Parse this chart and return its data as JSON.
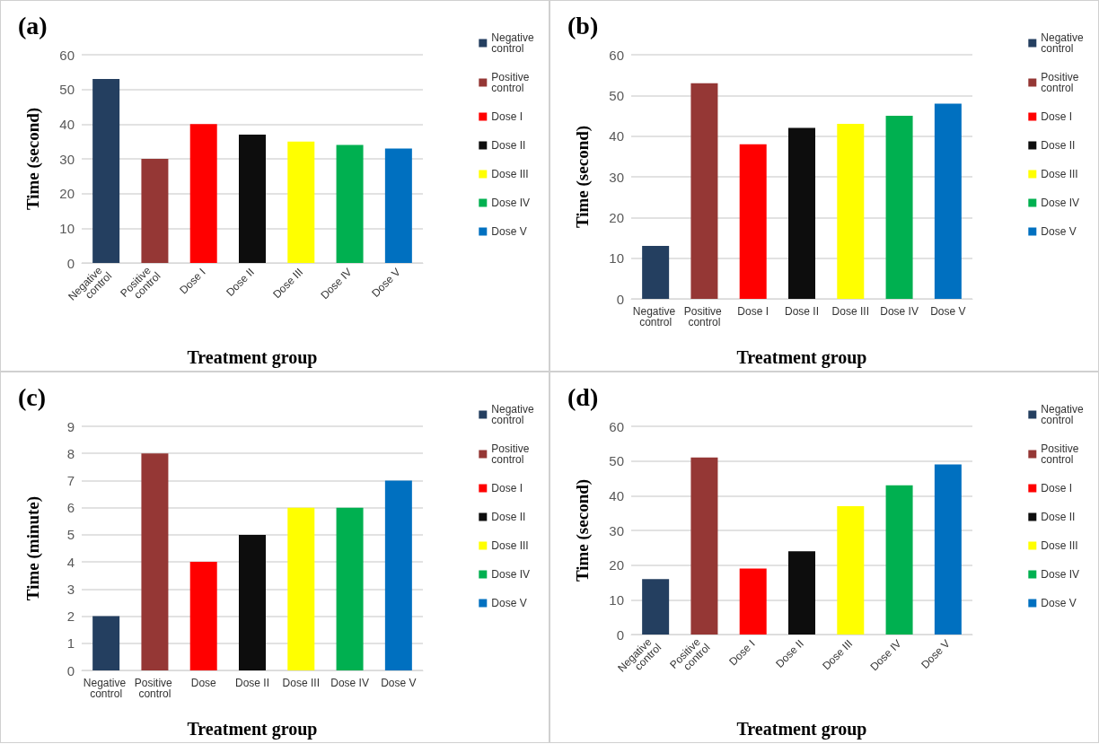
{
  "chart_data": [
    {
      "type": "bar",
      "title": "(a)",
      "xlabel": "Treatment group",
      "ylabel": "Time (second)",
      "categories": [
        "Negative control",
        "Positive control",
        "Dose I",
        "Dose II",
        "Dose III",
        "Dose IV",
        "Dose V"
      ],
      "stacked": true,
      "ylim": [
        0,
        60
      ],
      "yticks": [
        0,
        10,
        20,
        30,
        40,
        50,
        60
      ],
      "grid": "y",
      "legend": "right",
      "series": [
        {
          "name": "Negative control",
          "color": "#243f60",
          "values": [
            53,
            null,
            null,
            null,
            null,
            null,
            null
          ]
        },
        {
          "name": "Positive control",
          "color": "#953735",
          "values": [
            null,
            30,
            null,
            null,
            null,
            null,
            null
          ]
        },
        {
          "name": "Dose I",
          "color": "#ff0000",
          "values": [
            null,
            null,
            40,
            null,
            null,
            null,
            null
          ]
        },
        {
          "name": "Dose II",
          "color": "#0d0d0d",
          "values": [
            null,
            null,
            null,
            37,
            null,
            null,
            null
          ]
        },
        {
          "name": "Dose III",
          "color": "#ffff00",
          "values": [
            null,
            null,
            null,
            null,
            35,
            null,
            null
          ]
        },
        {
          "name": "Dose IV",
          "color": "#00b050",
          "values": [
            null,
            null,
            null,
            null,
            null,
            34,
            null
          ]
        },
        {
          "name": "Dose V",
          "color": "#0070c0",
          "values": [
            null,
            null,
            null,
            null,
            null,
            null,
            33
          ]
        }
      ]
    },
    {
      "type": "bar",
      "title": "(b)",
      "xlabel": "Treatment group",
      "ylabel": "Time (second)",
      "categories": [
        "Negative control",
        "Positive control",
        "Dose I",
        "Dose II",
        "Dose III",
        "Dose IV",
        "Dose V"
      ],
      "stacked": true,
      "ylim": [
        0,
        60
      ],
      "yticks": [
        0,
        10,
        20,
        30,
        40,
        50,
        60
      ],
      "grid": "y",
      "legend": "right",
      "series": [
        {
          "name": "Negative control",
          "color": "#243f60",
          "values": [
            13,
            null,
            null,
            null,
            null,
            null,
            null
          ]
        },
        {
          "name": "Positive control",
          "color": "#953735",
          "values": [
            null,
            53,
            null,
            null,
            null,
            null,
            null
          ]
        },
        {
          "name": "Dose I",
          "color": "#ff0000",
          "values": [
            null,
            null,
            38,
            null,
            null,
            null,
            null
          ]
        },
        {
          "name": "Dose II",
          "color": "#0d0d0d",
          "values": [
            null,
            null,
            null,
            42,
            null,
            null,
            null
          ]
        },
        {
          "name": "Dose III",
          "color": "#ffff00",
          "values": [
            null,
            null,
            null,
            null,
            43,
            null,
            null
          ]
        },
        {
          "name": "Dose IV",
          "color": "#00b050",
          "values": [
            null,
            null,
            null,
            null,
            null,
            45,
            null
          ]
        },
        {
          "name": "Dose V",
          "color": "#0070c0",
          "values": [
            null,
            null,
            null,
            null,
            null,
            null,
            48
          ]
        }
      ]
    },
    {
      "type": "bar",
      "title": "(c)",
      "xlabel": "Treatment group",
      "ylabel": "Time (minute)",
      "categories": [
        "Negative control",
        "Positive control",
        "Dose",
        "Dose II",
        "Dose III",
        "Dose IV",
        "Dose V"
      ],
      "stacked": true,
      "ylim": [
        0,
        9
      ],
      "yticks": [
        0,
        1,
        2,
        3,
        4,
        5,
        6,
        7,
        8,
        9
      ],
      "grid": "y",
      "legend": "right",
      "series": [
        {
          "name": "Negative control",
          "color": "#243f60",
          "values": [
            2,
            null,
            null,
            null,
            null,
            null,
            null
          ]
        },
        {
          "name": "Positive control",
          "color": "#953735",
          "values": [
            null,
            8,
            null,
            null,
            null,
            null,
            null
          ]
        },
        {
          "name": "Dose I",
          "color": "#ff0000",
          "values": [
            null,
            null,
            4,
            null,
            null,
            null,
            null
          ]
        },
        {
          "name": "Dose II",
          "color": "#0d0d0d",
          "values": [
            null,
            null,
            null,
            5,
            null,
            null,
            null
          ]
        },
        {
          "name": "Dose III",
          "color": "#ffff00",
          "values": [
            null,
            null,
            null,
            null,
            6,
            null,
            null
          ]
        },
        {
          "name": "Dose IV",
          "color": "#00b050",
          "values": [
            null,
            null,
            null,
            null,
            null,
            6,
            null
          ]
        },
        {
          "name": "Dose V",
          "color": "#0070c0",
          "values": [
            null,
            null,
            null,
            null,
            null,
            null,
            7
          ]
        }
      ]
    },
    {
      "type": "bar",
      "title": "(d)",
      "xlabel": "Treatment group",
      "ylabel": "Time (second)",
      "categories": [
        "Negative control",
        "Positive control",
        "Dose I",
        "Dose II",
        "Dose III",
        "Dose IV",
        "Dose V"
      ],
      "stacked": true,
      "ylim": [
        0,
        60
      ],
      "yticks": [
        0,
        10,
        20,
        30,
        40,
        50,
        60
      ],
      "grid": "y",
      "legend": "right",
      "series": [
        {
          "name": "Negative control",
          "color": "#243f60",
          "values": [
            16,
            null,
            null,
            null,
            null,
            null,
            null
          ]
        },
        {
          "name": "Positive control",
          "color": "#953735",
          "values": [
            null,
            51,
            null,
            null,
            null,
            null,
            null
          ]
        },
        {
          "name": "Dose I",
          "color": "#ff0000",
          "values": [
            null,
            null,
            19,
            null,
            null,
            null,
            null
          ]
        },
        {
          "name": "Dose II",
          "color": "#0d0d0d",
          "values": [
            null,
            null,
            null,
            24,
            null,
            null,
            null
          ]
        },
        {
          "name": "Dose III",
          "color": "#ffff00",
          "values": [
            null,
            null,
            null,
            null,
            37,
            null,
            null
          ]
        },
        {
          "name": "Dose IV",
          "color": "#00b050",
          "values": [
            null,
            null,
            null,
            null,
            null,
            43,
            null
          ]
        },
        {
          "name": "Dose V",
          "color": "#0070c0",
          "values": [
            null,
            null,
            null,
            null,
            null,
            null,
            49
          ]
        }
      ]
    }
  ]
}
